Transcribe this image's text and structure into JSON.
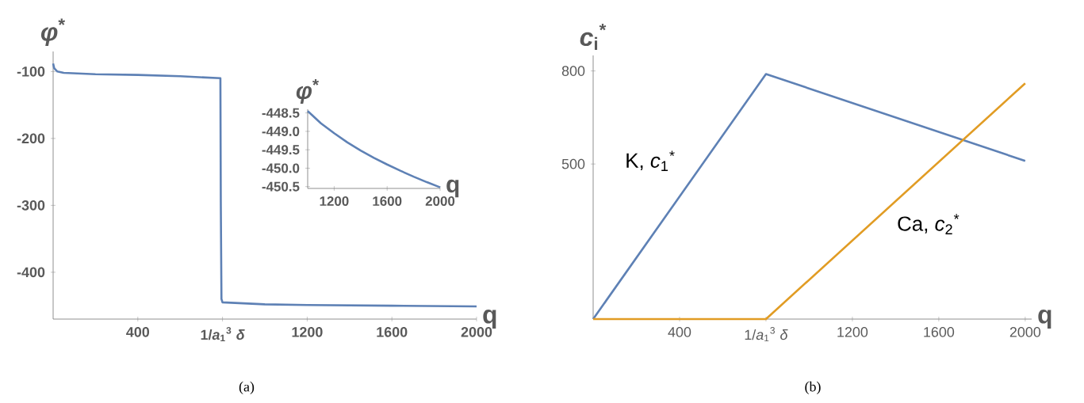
{
  "chart_data": [
    {
      "type": "line",
      "title": "(a)",
      "xlabel": "q",
      "ylabel": "*φ*$^{*}$",
      "xlim": [
        0,
        2000
      ],
      "ylim": [
        -470,
        -70
      ],
      "xticks": [
        400,
        {
          "value": 800,
          "label": "1/*a*$_{1}$$^{3}$ *δ*"
        },
        1200,
        1600,
        2000
      ],
      "yticks": [
        -100,
        -200,
        -300,
        -400
      ],
      "x": [
        0,
        5,
        20,
        50,
        200,
        400,
        600,
        790,
        792,
        795,
        800,
        1000,
        1200,
        1600,
        2000
      ],
      "series": [
        {
          "color": "#5e81b5",
          "values": [
            -88,
            -95,
            -100,
            -102,
            -104,
            -105,
            -107,
            -110,
            -300,
            -440,
            -445,
            -448,
            -449,
            -450,
            -451
          ]
        }
      ]
    },
    {
      "type": "line",
      "xlabel": "q",
      "ylabel": "*φ*$^{*}$",
      "xlim": [
        1000,
        2000
      ],
      "ylim": [
        -450.55,
        -448.4
      ],
      "xticks": [
        1200,
        1600,
        2000
      ],
      "yticks": [
        -448.5,
        {
          "value": -449,
          "label": "-449.0"
        },
        -449.5,
        {
          "value": -450,
          "label": "-450.0"
        },
        -450.5
      ],
      "x": [
        1000,
        1100,
        1200,
        1300,
        1400,
        1500,
        1600,
        1700,
        1800,
        1900,
        2000
      ],
      "series": [
        {
          "color": "#5e81b5",
          "values": [
            -448.45,
            -448.78,
            -449.05,
            -449.3,
            -449.52,
            -449.72,
            -449.9,
            -450.07,
            -450.23,
            -450.38,
            -450.52
          ]
        }
      ]
    },
    {
      "type": "line",
      "title": "(b)",
      "xlabel": "q",
      "ylabel": "*c*$_{i}$$^{*}$",
      "xlim": [
        0,
        2030
      ],
      "ylim": [
        0,
        850
      ],
      "xticks": [
        400,
        {
          "value": 800,
          "label": "1/*a*$_{1}$$^{3}$ *δ*"
        },
        1200,
        1600,
        2000
      ],
      "yticks": [
        500,
        800
      ],
      "x": [
        0,
        800,
        2000
      ],
      "series": [
        {
          "name": "K, *c*$_{1}$$^{*}$",
          "color": "#5e81b5",
          "values": [
            0,
            790,
            510
          ]
        },
        {
          "name": "Ca, *c*$_{2}$$^{*}$",
          "color": "#e19c24",
          "values": [
            0,
            0,
            760
          ]
        }
      ]
    }
  ]
}
